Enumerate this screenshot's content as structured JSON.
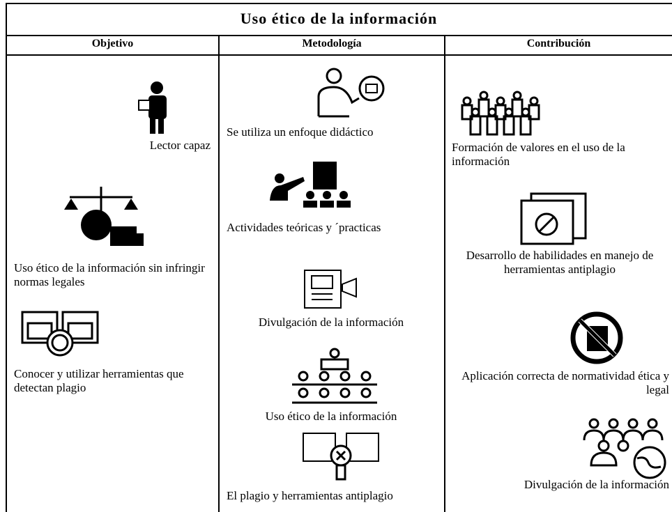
{
  "title": "Uso ético de la información",
  "columns": [
    {
      "header": "Objetivo",
      "items": [
        "Lector capaz",
        "Uso ético de la información sin infringir normas legales",
        "Conocer y utilizar herramientas que detectan plagio"
      ]
    },
    {
      "header": "Metodología",
      "items": [
        "Se utiliza un enfoque didáctico",
        "Actividades teóricas y ´practicas",
        "Divulgación de la información",
        "Uso ético de la información",
        "El plagio y herramientas antiplagio"
      ]
    },
    {
      "header": "Contribución",
      "items": [
        "Formación de valores en el uso de la información",
        "Desarrollo de habilidades en manejo de herramientas antiplagio",
        "Aplicación correcta de normatividad ética y legal",
        "Divulgación de la información"
      ]
    }
  ]
}
